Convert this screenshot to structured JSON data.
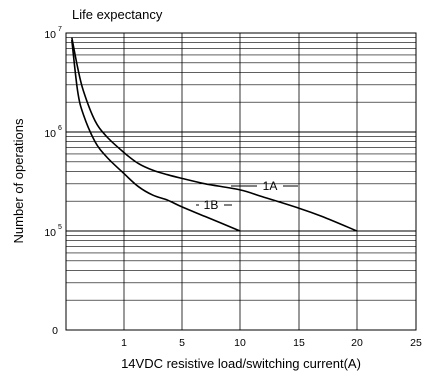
{
  "chart_data": {
    "type": "line",
    "title": "Life expectancy",
    "xlabel": "14VDC resistive load/switching current(A)",
    "ylabel": "Number of operations",
    "x_scale": "custom-nonlinear",
    "y_scale": "log",
    "xlim": [
      0,
      25
    ],
    "ylim": [
      10000,
      10000000
    ],
    "x_ticks": [
      {
        "value": 1,
        "label": "1"
      },
      {
        "value": 5,
        "label": "5"
      },
      {
        "value": 10,
        "label": "10"
      },
      {
        "value": 15,
        "label": "15"
      },
      {
        "value": 20,
        "label": "20"
      },
      {
        "value": 25,
        "label": "25"
      }
    ],
    "y_ticks": [
      {
        "value": 10000,
        "base": "0",
        "exp": ""
      },
      {
        "value": 100000,
        "base": "10",
        "exp": "5"
      },
      {
        "value": 1000000,
        "base": "10",
        "exp": "6"
      },
      {
        "value": 10000000,
        "base": "10",
        "exp": "7"
      }
    ],
    "grid": true,
    "series": [
      {
        "name": "1A",
        "color": "#000000",
        "points": [
          [
            0.1,
            9000000
          ],
          [
            0.2,
            4500000
          ],
          [
            0.3,
            2600000
          ],
          [
            0.5,
            1300000
          ],
          [
            0.7,
            900000
          ],
          [
            1,
            620000
          ],
          [
            2,
            480000
          ],
          [
            3,
            410000
          ],
          [
            4,
            370000
          ],
          [
            5,
            340000
          ],
          [
            7,
            300000
          ],
          [
            10,
            260000
          ],
          [
            12,
            220000
          ],
          [
            15,
            170000
          ],
          [
            17,
            140000
          ],
          [
            20,
            100000
          ]
        ]
      },
      {
        "name": "1B",
        "color": "#000000",
        "points": [
          [
            0.1,
            8500000
          ],
          [
            0.2,
            2600000
          ],
          [
            0.3,
            1500000
          ],
          [
            0.5,
            800000
          ],
          [
            0.7,
            560000
          ],
          [
            1,
            380000
          ],
          [
            2,
            280000
          ],
          [
            3,
            230000
          ],
          [
            4,
            205000
          ],
          [
            5,
            175000
          ],
          [
            7,
            140000
          ],
          [
            10,
            100000
          ]
        ]
      }
    ]
  }
}
